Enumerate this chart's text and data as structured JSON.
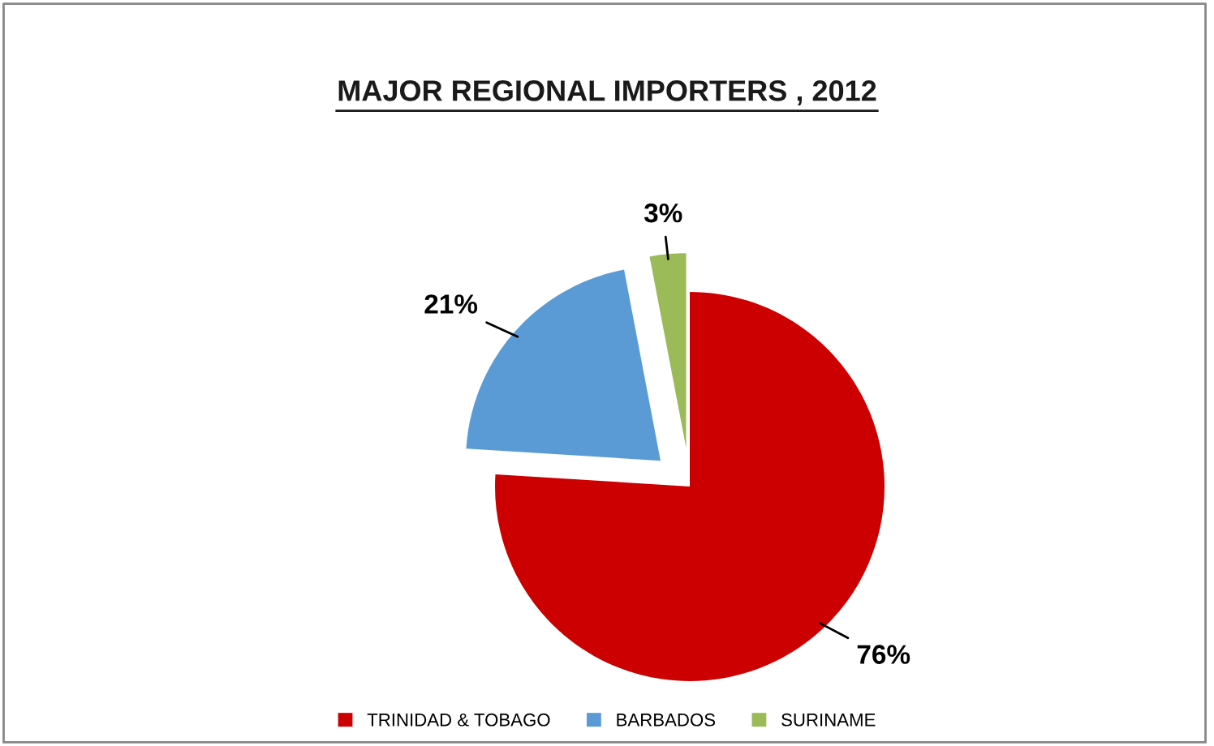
{
  "chart_data": {
    "type": "pie",
    "title": "MAJOR REGIONAL IMPORTERS , 2012",
    "categories": [
      "TRINIDAD & TOBAGO",
      "BARBADOS",
      "SURINAME"
    ],
    "values": [
      76,
      21,
      3
    ],
    "colors": [
      "#cc0000",
      "#5b9bd5",
      "#9bbb59"
    ],
    "value_labels": [
      "76%",
      "21%",
      "3%"
    ],
    "legend": "bottom"
  }
}
